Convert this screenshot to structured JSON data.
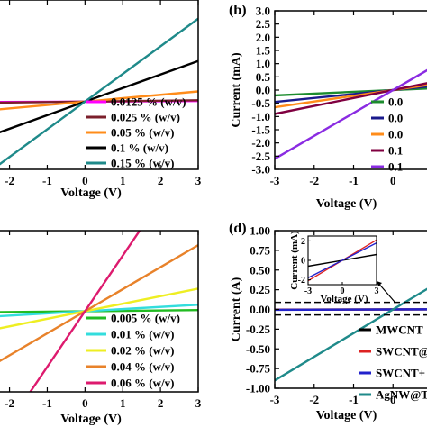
{
  "chart_data": [
    {
      "panel": "",
      "type": "line",
      "xlabel": "Voltage (V)",
      "ylabel": "",
      "xlim": [
        -2.3,
        3
      ],
      "ylim": [
        -2.0,
        3.0
      ],
      "xticks": [
        -2,
        -1,
        0,
        1,
        2,
        3
      ],
      "xtick_labels": [
        "-2",
        "-1",
        "0",
        "1",
        "2",
        "3"
      ],
      "yticks": [],
      "ytick_labels": [],
      "legend_position": "lower-right",
      "series": [
        {
          "name": "0.0125 % (w/v)",
          "color": "#ff00ff",
          "x": [
            -3,
            3
          ],
          "y": [
            -0.015,
            0.015
          ]
        },
        {
          "name": "0.025 % (w/v)",
          "color": "#7b1f2b",
          "x": [
            -3,
            3
          ],
          "y": [
            -0.04,
            0.04
          ]
        },
        {
          "name": "0.05 % (w/v)",
          "color": "#ff8c1a",
          "x": [
            -3,
            3
          ],
          "y": [
            -0.3,
            0.3
          ]
        },
        {
          "name": "0.1 % (w/v)",
          "color": "#000000",
          "x": [
            -3,
            3
          ],
          "y": [
            -1.2,
            1.2
          ]
        },
        {
          "name": "0.15 % (w/v)",
          "color": "#1f8a8a",
          "x": [
            -3,
            3
          ],
          "y": [
            -2.45,
            2.45
          ]
        }
      ]
    },
    {
      "panel": "(b)",
      "type": "line",
      "xlabel": "Voltage (V)",
      "ylabel": "Current (mA)",
      "xlim": [
        -3,
        1.0
      ],
      "ylim": [
        -3.0,
        3.0
      ],
      "xticks": [
        -3,
        -2,
        -1,
        0,
        1
      ],
      "xtick_labels": [
        "-3",
        "-2",
        "-1",
        "0",
        "1"
      ],
      "yticks": [
        -3.0,
        -2.5,
        -2.0,
        -1.5,
        -1.0,
        -0.5,
        0.0,
        0.5,
        1.0,
        1.5,
        2.0,
        2.5,
        3.0
      ],
      "ytick_labels": [
        "-3.0",
        "-2.5",
        "-2.0",
        "-1.5",
        "-1.0",
        "-0.5",
        "0.0",
        "0.5",
        "1.0",
        "1.5",
        "2.0",
        "2.5",
        "3.0"
      ],
      "legend_position": "lower-right",
      "series": [
        {
          "name": "0.0",
          "color": "#1c8c2e",
          "x": [
            -3,
            3
          ],
          "y": [
            -0.2,
            0.2
          ]
        },
        {
          "name": "0.0",
          "color": "#1a1a8c",
          "x": [
            -3,
            3
          ],
          "y": [
            -0.45,
            0.45
          ]
        },
        {
          "name": "0.0",
          "color": "#ff8c1a",
          "x": [
            -3,
            3
          ],
          "y": [
            -0.65,
            0.65
          ]
        },
        {
          "name": "0.1",
          "color": "#800040",
          "x": [
            -3,
            3
          ],
          "y": [
            -0.9,
            0.9
          ]
        },
        {
          "name": "0.1",
          "color": "#8a2be2",
          "x": [
            -3,
            3
          ],
          "y": [
            -2.6,
            2.6
          ]
        }
      ]
    },
    {
      "panel": "",
      "type": "line",
      "xlabel": "Voltage (V)",
      "ylabel": "",
      "xlim": [
        -2.3,
        3
      ],
      "ylim": [
        -1.0,
        1.0
      ],
      "xticks": [
        -2,
        -1,
        0,
        1,
        2,
        3
      ],
      "xtick_labels": [
        "-2",
        "-1",
        "0",
        "1",
        "2",
        "3"
      ],
      "yticks": [],
      "ytick_labels": [],
      "legend_position": "lower-right",
      "series": [
        {
          "name": "0.005 % (w/v)",
          "color": "#22bb22",
          "x": [
            -3,
            3
          ],
          "y": [
            -0.015,
            0.015
          ]
        },
        {
          "name": "0.01 % (w/v)",
          "color": "#33dddd",
          "x": [
            -3,
            3
          ],
          "y": [
            -0.08,
            0.08
          ]
        },
        {
          "name": "0.02 % (w/v)",
          "color": "#eeee22",
          "x": [
            -3,
            3
          ],
          "y": [
            -0.28,
            0.28
          ]
        },
        {
          "name": "0.04 % (w/v)",
          "color": "#e8822a",
          "x": [
            -3,
            3
          ],
          "y": [
            -0.82,
            0.82
          ]
        },
        {
          "name": "0.06 % (w/v)",
          "color": "#dd1a6e",
          "x": [
            -1.45,
            1.45
          ],
          "y": [
            -1.0,
            1.0
          ]
        }
      ]
    },
    {
      "panel": "(d)",
      "type": "line",
      "xlabel": "Voltage (V)",
      "ylabel": "Current (A)",
      "xlim": [
        -3,
        1.0
      ],
      "ylim": [
        -1.0,
        1.0
      ],
      "xticks": [
        -3,
        -2,
        -1,
        0,
        1
      ],
      "xtick_labels": [
        "-3",
        "-2",
        "-1",
        "0",
        "1"
      ],
      "yticks": [
        -1.0,
        -0.75,
        -0.5,
        -0.25,
        0.0,
        0.25,
        0.5,
        0.75,
        1.0
      ],
      "ytick_labels": [
        "-1.00",
        "-0.75",
        "-0.50",
        "-0.25",
        "0.00",
        "0.25",
        "0.50",
        "0.75",
        "1.00"
      ],
      "legend_position": "lower-right",
      "dashed_box_y": [
        -0.07,
        0.09
      ],
      "series": [
        {
          "name": "MWCNT",
          "color": "#000000",
          "x": [
            -3,
            3
          ],
          "y": [
            -0.002,
            0.002
          ]
        },
        {
          "name": "SWCNT@",
          "color": "#dd2222",
          "x": [
            -3,
            3
          ],
          "y": [
            -0.003,
            0.003
          ]
        },
        {
          "name": "SWCNT+",
          "color": "#2222cc",
          "x": [
            -3,
            3
          ],
          "y": [
            -0.004,
            0.004
          ]
        },
        {
          "name": "AgNW@T",
          "color": "#1f8a8a",
          "x": [
            -3,
            3
          ],
          "y": [
            -0.9,
            0.9
          ]
        }
      ],
      "inset": {
        "xlabel": "Voltage (V)",
        "ylabel": "Current (mA)",
        "xlim": [
          -3,
          3
        ],
        "ylim": [
          -2.5,
          2.5
        ],
        "xticks": [
          -3,
          0,
          3
        ],
        "xtick_labels": [
          "-3",
          "0",
          "3"
        ],
        "yticks": [
          -2,
          0,
          2
        ],
        "ytick_labels": [
          "-2",
          "0",
          "2"
        ],
        "series": [
          {
            "color": "#000000",
            "x": [
              -3,
              3
            ],
            "y": [
              -0.6,
              0.6
            ]
          },
          {
            "color": "#dd2222",
            "x": [
              -3,
              3
            ],
            "y": [
              -2.1,
              2.1
            ]
          },
          {
            "color": "#2222cc",
            "x": [
              -3,
              3
            ],
            "y": [
              -1.8,
              1.8
            ]
          }
        ]
      }
    }
  ]
}
